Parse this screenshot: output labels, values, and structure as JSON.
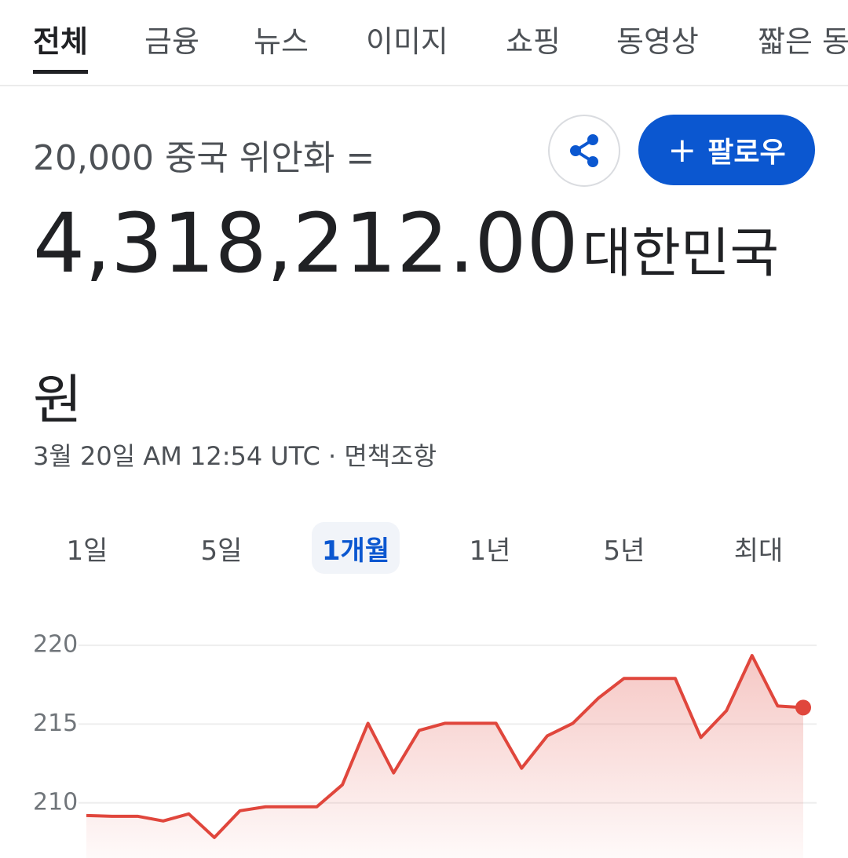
{
  "tabs": [
    "전체",
    "금융",
    "뉴스",
    "이미지",
    "쇼핑",
    "동영상",
    "짧은 동"
  ],
  "selected_tab": 0,
  "conversion": {
    "from": "20,000 중국 위안화 =",
    "value": "4,318,212.00",
    "unit": "대한민국 원"
  },
  "follow_button": "팔로우",
  "timestamp": "3월 20일 AM 12:54 UTC",
  "separator": "·",
  "disclaimer": "면책조항",
  "ranges": [
    "1일",
    "5일",
    "1개월",
    "1년",
    "5년",
    "최대"
  ],
  "selected_range": 2,
  "chart_data": {
    "type": "line",
    "color": "#e0463c",
    "values": [
      209.2,
      209.15,
      209.15,
      208.85,
      209.3,
      207.8,
      209.5,
      209.75,
      209.75,
      209.75,
      211.15,
      215.05,
      211.9,
      214.6,
      215.05,
      215.05,
      215.05,
      212.2,
      214.25,
      215.05,
      216.65,
      217.9,
      217.9,
      217.9,
      214.15,
      215.85,
      219.35,
      216.15,
      216.05
    ],
    "ylim": [
      206.5,
      221.1
    ],
    "yticks": [
      210,
      215,
      220
    ],
    "grid": true
  }
}
